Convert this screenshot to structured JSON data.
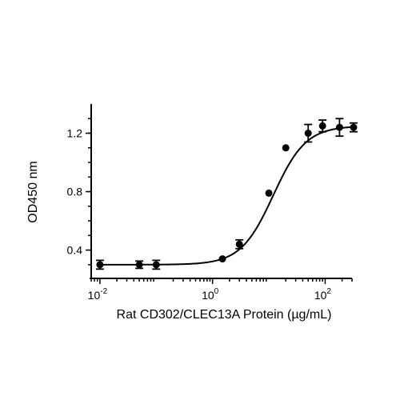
{
  "chart_data": {
    "type": "scatter",
    "title": "",
    "xlabel": "Rat CD302/CLEC13A Protein (µg/mL)",
    "ylabel": "OD450 nm",
    "x_scale": "log",
    "xlim": [
      0.007,
      300
    ],
    "ylim": [
      0.25,
      1.4
    ],
    "x_ticks": [
      {
        "value": 0.01,
        "base": "10",
        "exp": "-2"
      },
      {
        "value": 1,
        "base": "10",
        "exp": "0"
      },
      {
        "value": 100,
        "base": "10",
        "exp": "2"
      }
    ],
    "y_ticks": [
      {
        "value": 0.4,
        "label": "0.4"
      },
      {
        "value": 0.8,
        "label": "0.8"
      },
      {
        "value": 1.2,
        "label": "1.2"
      }
    ],
    "grid": false,
    "legend": "none",
    "points": [
      {
        "x": 0.01,
        "y": 0.3,
        "err": 0.03
      },
      {
        "x": 0.05,
        "y": 0.3,
        "err": 0.025
      },
      {
        "x": 0.1,
        "y": 0.3,
        "err": 0.03
      },
      {
        "x": 1.5,
        "y": 0.34,
        "err": 0.0
      },
      {
        "x": 3.0,
        "y": 0.44,
        "err": 0.03
      },
      {
        "x": 10.0,
        "y": 0.79,
        "err": 0.0
      },
      {
        "x": 20.0,
        "y": 1.1,
        "err": 0.0
      },
      {
        "x": 50.0,
        "y": 1.2,
        "err": 0.06
      },
      {
        "x": 90.0,
        "y": 1.25,
        "err": 0.04
      },
      {
        "x": 180.0,
        "y": 1.24,
        "err": 0.06
      },
      {
        "x": 320.0,
        "y": 1.24,
        "err": 0.03
      }
    ],
    "curve": {
      "type": "4PL",
      "bottom": 0.3,
      "top": 1.25,
      "ec50": 12,
      "hill": 1.5
    }
  }
}
